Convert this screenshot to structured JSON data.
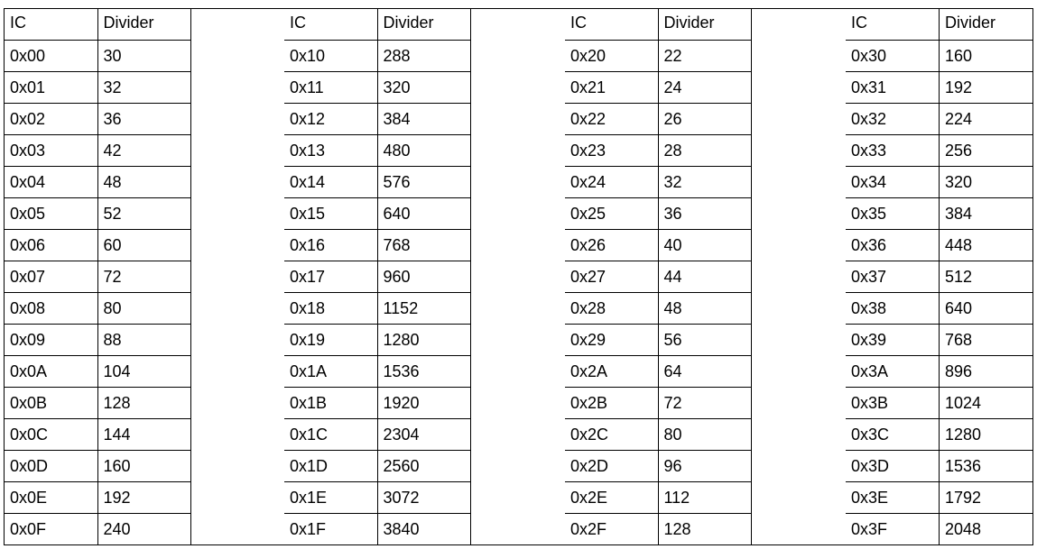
{
  "headers": {
    "ic": "IC",
    "divider": "Divider"
  },
  "blocks": [
    {
      "rows": [
        [
          "0x00",
          "30"
        ],
        [
          "0x01",
          "32"
        ],
        [
          "0x02",
          "36"
        ],
        [
          "0x03",
          "42"
        ],
        [
          "0x04",
          "48"
        ],
        [
          "0x05",
          "52"
        ],
        [
          "0x06",
          "60"
        ],
        [
          "0x07",
          "72"
        ],
        [
          "0x08",
          "80"
        ],
        [
          "0x09",
          "88"
        ],
        [
          "0x0A",
          "104"
        ],
        [
          "0x0B",
          "128"
        ],
        [
          "0x0C",
          "144"
        ],
        [
          "0x0D",
          "160"
        ],
        [
          "0x0E",
          "192"
        ],
        [
          "0x0F",
          "240"
        ]
      ]
    },
    {
      "rows": [
        [
          "0x10",
          "288"
        ],
        [
          "0x11",
          "320"
        ],
        [
          "0x12",
          "384"
        ],
        [
          "0x13",
          "480"
        ],
        [
          "0x14",
          "576"
        ],
        [
          "0x15",
          "640"
        ],
        [
          "0x16",
          "768"
        ],
        [
          "0x17",
          "960"
        ],
        [
          "0x18",
          "1152"
        ],
        [
          "0x19",
          "1280"
        ],
        [
          "0x1A",
          "1536"
        ],
        [
          "0x1B",
          "1920"
        ],
        [
          "0x1C",
          "2304"
        ],
        [
          "0x1D",
          "2560"
        ],
        [
          "0x1E",
          "3072"
        ],
        [
          "0x1F",
          "3840"
        ]
      ]
    },
    {
      "rows": [
        [
          "0x20",
          "22"
        ],
        [
          "0x21",
          "24"
        ],
        [
          "0x22",
          "26"
        ],
        [
          "0x23",
          "28"
        ],
        [
          "0x24",
          "32"
        ],
        [
          "0x25",
          "36"
        ],
        [
          "0x26",
          "40"
        ],
        [
          "0x27",
          "44"
        ],
        [
          "0x28",
          "48"
        ],
        [
          "0x29",
          "56"
        ],
        [
          "0x2A",
          "64"
        ],
        [
          "0x2B",
          "72"
        ],
        [
          "0x2C",
          "80"
        ],
        [
          "0x2D",
          "96"
        ],
        [
          "0x2E",
          "112"
        ],
        [
          "0x2F",
          "128"
        ]
      ]
    },
    {
      "rows": [
        [
          "0x30",
          "160"
        ],
        [
          "0x31",
          "192"
        ],
        [
          "0x32",
          "224"
        ],
        [
          "0x33",
          "256"
        ],
        [
          "0x34",
          "320"
        ],
        [
          "0x35",
          "384"
        ],
        [
          "0x36",
          "448"
        ],
        [
          "0x37",
          "512"
        ],
        [
          "0x38",
          "640"
        ],
        [
          "0x39",
          "768"
        ],
        [
          "0x3A",
          "896"
        ],
        [
          "0x3B",
          "1024"
        ],
        [
          "0x3C",
          "1280"
        ],
        [
          "0x3D",
          "1536"
        ],
        [
          "0x3E",
          "1792"
        ],
        [
          "0x3F",
          "2048"
        ]
      ]
    }
  ]
}
